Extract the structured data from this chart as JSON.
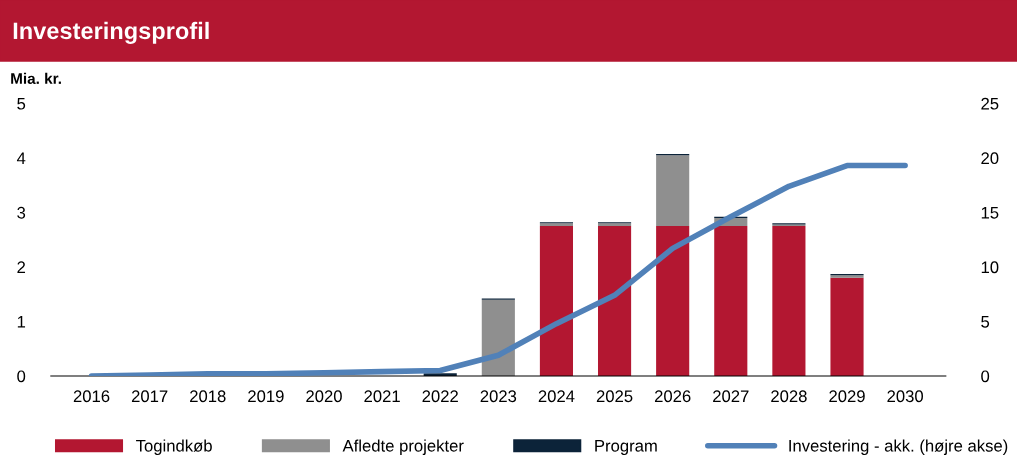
{
  "chart_data": {
    "type": "bar",
    "stacked": true,
    "title": "Investeringsprofil",
    "ylabel": "Mia. kr.",
    "categories": [
      "2016",
      "2017",
      "2018",
      "2019",
      "2020",
      "2021",
      "2022",
      "2023",
      "2024",
      "2025",
      "2026",
      "2027",
      "2028",
      "2029",
      "2030"
    ],
    "series": [
      {
        "name": "Togindkøb",
        "color": "#b31731",
        "values": [
          0,
          0,
          0,
          0,
          0,
          0,
          0,
          0,
          2.75,
          2.75,
          2.75,
          2.75,
          2.75,
          1.8,
          0
        ]
      },
      {
        "name": "Afledte projekter",
        "color": "#8f8f8f",
        "values": [
          0,
          0,
          0,
          0,
          0,
          0,
          0,
          1.4,
          0.05,
          0.05,
          1.3,
          0.15,
          0.03,
          0.05,
          0
        ]
      },
      {
        "name": "Program",
        "color": "#0c2339",
        "values": [
          0,
          0,
          0,
          0,
          0,
          null,
          0.05,
          0.02,
          0.02,
          0.02,
          0.02,
          0.02,
          0.02,
          0.02,
          0
        ]
      },
      {
        "name": "Investering - akk. (højre akse)",
        "type": "line",
        "axis": "y2",
        "color": "#5181b8",
        "values": [
          0,
          0.1,
          0.2,
          0.2,
          0.3,
          0.4,
          0.5,
          1.9,
          4.8,
          7.4,
          11.7,
          14.6,
          17.4,
          19.3,
          19.3
        ]
      }
    ],
    "ylim": [
      0,
      5
    ],
    "yticks": [
      0,
      1,
      2,
      3,
      4,
      5
    ],
    "y2lim": [
      0,
      25
    ],
    "y2ticks": [
      0,
      5,
      10,
      15,
      20,
      25
    ],
    "grid": false,
    "legend": "bottom",
    "marker": "none",
    "line_style": "solid"
  }
}
